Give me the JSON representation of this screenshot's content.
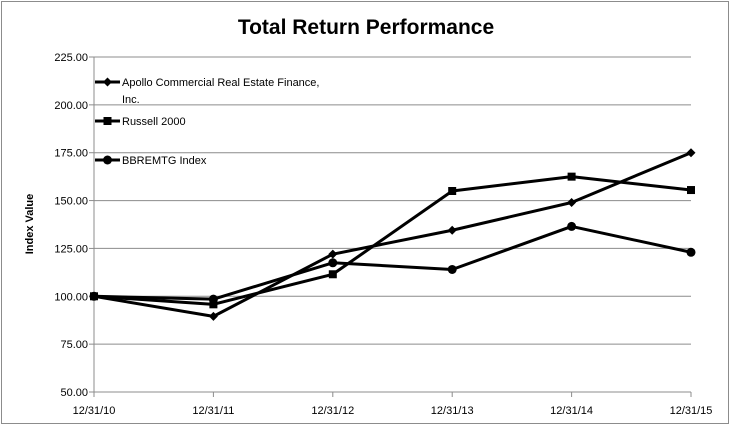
{
  "chart_data": {
    "type": "line",
    "title": "Total Return Performance",
    "xlabel": "",
    "ylabel": "Index Value",
    "categories": [
      "12/31/10",
      "12/31/11",
      "12/31/12",
      "12/31/13",
      "12/31/14",
      "12/31/15"
    ],
    "yticks": [
      "50.00",
      "75.00",
      "100.00",
      "125.00",
      "150.00",
      "175.00",
      "200.00",
      "225.00"
    ],
    "ylim": [
      50,
      225
    ],
    "grid": true,
    "legend_position": "top-left",
    "series": [
      {
        "name": "Apollo Commercial Real Estate Finance, Inc.",
        "legend_lines": [
          "Apollo Commercial Real Estate Finance,",
          "Inc."
        ],
        "marker": "diamond",
        "values": [
          100.0,
          89.5,
          122.0,
          134.5,
          149.0,
          175.0
        ]
      },
      {
        "name": "Russell 2000",
        "legend_lines": [
          "Russell 2000"
        ],
        "marker": "square",
        "values": [
          100.0,
          95.8,
          111.5,
          155.0,
          162.5,
          155.5
        ]
      },
      {
        "name": "BBREMTG Index",
        "legend_lines": [
          "BBREMTG Index"
        ],
        "marker": "circle",
        "values": [
          100.0,
          98.5,
          117.5,
          114.0,
          136.5,
          123.0
        ]
      }
    ]
  }
}
